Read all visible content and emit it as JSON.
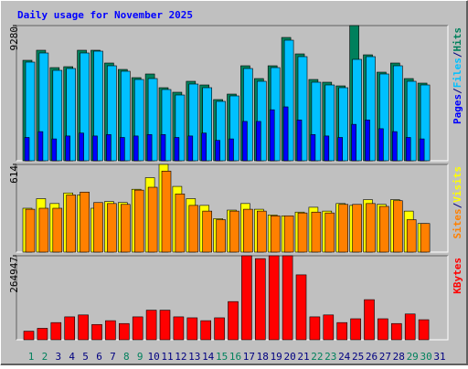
{
  "chart_data": [
    {
      "type": "bar",
      "title": "Daily usage for November 2025",
      "categories": [
        "1",
        "2",
        "3",
        "4",
        "5",
        "6",
        "7",
        "8",
        "9",
        "10",
        "11",
        "12",
        "13",
        "14",
        "15",
        "16",
        "17",
        "18",
        "19",
        "20",
        "21",
        "22",
        "23",
        "24",
        "25",
        "26",
        "27",
        "28",
        "29",
        "30",
        "31"
      ],
      "category_label_colors": [
        "#00805c",
        "#00805c",
        "#000080",
        "#000080",
        "#000080",
        "#000080",
        "#000080",
        "#00805c",
        "#00805c",
        "#000080",
        "#000080",
        "#000080",
        "#000080",
        "#000080",
        "#00805c",
        "#00805c",
        "#000080",
        "#000080",
        "#000080",
        "#000080",
        "#000080",
        "#00805c",
        "#00805c",
        "#000080",
        "#000080",
        "#000080",
        "#000080",
        "#000080",
        "#00805c",
        "#00805c",
        "#000080"
      ],
      "legend_separator": "/",
      "ylim": [
        0,
        9280
      ],
      "yticks": [
        9280
      ],
      "series": [
        {
          "name": "Hits",
          "color": "#00805c",
          "values": [
            6897,
            7587,
            6395,
            6458,
            7587,
            7587,
            6709,
            6270,
            5706,
            5957,
            5016,
            4703,
            5455,
            5204,
            4201,
            4577,
            6521,
            5643,
            6521,
            8465,
            7336,
            5580,
            5392,
            5141,
            9280,
            7273,
            6082,
            6709,
            5643,
            5330,
            0
          ]
        },
        {
          "name": "Files",
          "color": "#00c0ff",
          "values": [
            6772,
            7399,
            6207,
            6333,
            7399,
            7524,
            6521,
            6145,
            5580,
            5643,
            4891,
            4514,
            5267,
            5016,
            4076,
            4452,
            6333,
            5455,
            6395,
            8276,
            7148,
            5392,
            5204,
            5016,
            6960,
            7148,
            5957,
            6521,
            5455,
            5204,
            0
          ]
        },
        {
          "name": "Pages",
          "color": "#0000ff",
          "values": [
            1600,
            2000,
            1500,
            1700,
            1900,
            1700,
            1800,
            1600,
            1700,
            1800,
            1800,
            1600,
            1700,
            1900,
            1400,
            1500,
            2700,
            2700,
            3500,
            3700,
            2800,
            1800,
            1700,
            1600,
            2500,
            2800,
            2200,
            2000,
            1600,
            1500,
            0
          ]
        }
      ]
    },
    {
      "type": "bar",
      "ylim": [
        0,
        614
      ],
      "yticks": [
        614
      ],
      "series": [
        {
          "name": "Visits",
          "color": "#ffff00",
          "values": [
            307,
            374,
            340,
            414,
            400,
            307,
            354,
            347,
            440,
            521,
            614,
            460,
            374,
            327,
            234,
            294,
            340,
            300,
            260,
            254,
            280,
            314,
            287,
            340,
            327,
            367,
            334,
            367,
            287,
            200,
            0
          ]
        },
        {
          "name": "Sites",
          "color": "#ff8000",
          "values": [
            300,
            307,
            307,
            400,
            420,
            347,
            340,
            334,
            434,
            454,
            567,
            407,
            327,
            287,
            227,
            287,
            300,
            287,
            254,
            254,
            274,
            280,
            274,
            334,
            334,
            340,
            320,
            360,
            227,
            200,
            0
          ]
        }
      ]
    },
    {
      "type": "bar",
      "ylim": [
        0,
        264947
      ],
      "yticks": [
        264947
      ],
      "series": [
        {
          "name": "KBytes",
          "color": "#ff0000",
          "values": [
            27099,
            36132,
            54198,
            72264,
            78286,
            48176,
            60220,
            51187,
            72264,
            93341,
            93341,
            72264,
            69253,
            60220,
            69253,
            120440,
            264947,
            255914,
            264947,
            264947,
            204748,
            72264,
            78286,
            54198,
            66242,
            126462,
            66242,
            51187,
            81297,
            63231,
            0
          ]
        }
      ]
    }
  ]
}
